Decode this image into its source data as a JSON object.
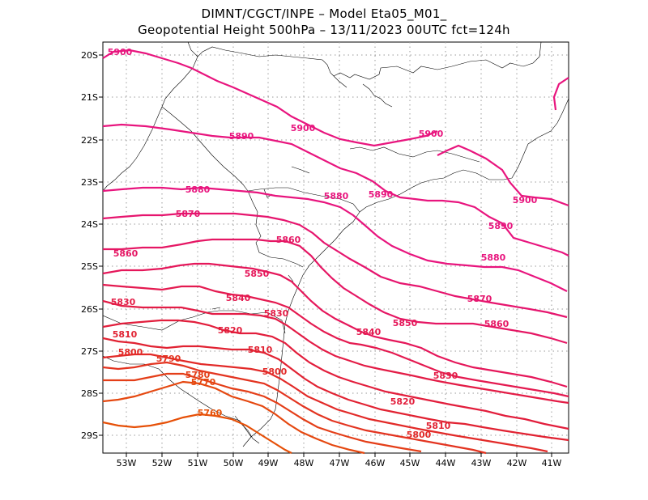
{
  "header": {
    "line1": "DIMNT/CGCT/INPE –  Model Eta05_M01_",
    "line2": "Geopotential Height 500hPa –  13/11/2023 00UTC fct=124h"
  },
  "axes": {
    "lat_labels": [
      "20S",
      "21S",
      "22S",
      "23S",
      "24S",
      "25S",
      "26S",
      "27S",
      "28S",
      "29S"
    ],
    "lon_labels": [
      "53W",
      "52W",
      "51W",
      "50W",
      "49W",
      "48W",
      "47W",
      "46W",
      "45W",
      "44W",
      "43W",
      "42W",
      "41W"
    ]
  },
  "contours": [
    {
      "value": "5900",
      "color": "#e8157e"
    },
    {
      "value": "5890",
      "color": "#e8157e"
    },
    {
      "value": "5880",
      "color": "#e8157e"
    },
    {
      "value": "5870",
      "color": "#e6156e"
    },
    {
      "value": "5860",
      "color": "#e51764"
    },
    {
      "value": "5850",
      "color": "#e5175a"
    },
    {
      "value": "5840",
      "color": "#e41a50"
    },
    {
      "value": "5830",
      "color": "#e31c46"
    },
    {
      "value": "5820",
      "color": "#e21e3c"
    },
    {
      "value": "5810",
      "color": "#e12232"
    },
    {
      "value": "5800",
      "color": "#e22a28"
    },
    {
      "value": "5790",
      "color": "#e33420"
    },
    {
      "value": "5780",
      "color": "#e43e18"
    },
    {
      "value": "5770",
      "color": "#e54810"
    },
    {
      "value": "5760",
      "color": "#e65008"
    }
  ]
}
